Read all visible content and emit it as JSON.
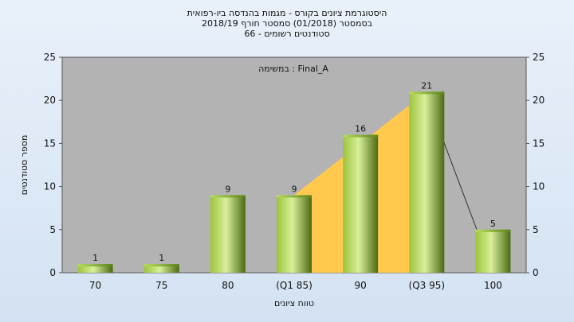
{
  "chart_data": {
    "type": "bar",
    "title_lines": [
      "היסטוגרמת ציונים בקורס - מגמות בהנדסה ביו-רפואית",
      "בסמסטר  (01/2018)  סמסטר חורף 2018/19",
      "סטודנטים רשומים - 66"
    ],
    "annotation": "במשימה : Final_A",
    "xlabel": "טווח ציונים",
    "ylabel": "מספר סטודנטים",
    "categories": [
      "70",
      "75",
      "80",
      "(Q1 85)",
      "90",
      "(Q3 95)",
      "100"
    ],
    "values": [
      1,
      1,
      9,
      9,
      16,
      21,
      5
    ],
    "ylim": [
      0,
      25
    ],
    "yticks": [
      0,
      5,
      10,
      15,
      20,
      25
    ],
    "box": {
      "category_range": [
        "(Q1 85)",
        "(Q3 95)"
      ],
      "upper_values": [
        9,
        21
      ],
      "lower_values": [
        0,
        0
      ]
    },
    "whisker": {
      "from": {
        "category": "(Q3 95)",
        "value": 16
      },
      "to": {
        "category": "100",
        "value": 0
      }
    },
    "grid": false,
    "colors": {
      "bar_light": "#d8ef9a",
      "bar_mid": "#9cc43c",
      "bar_dark": "#4a6a12",
      "plot_bg": "#b3b3b3",
      "box_fill": "#ffc94d"
    }
  }
}
